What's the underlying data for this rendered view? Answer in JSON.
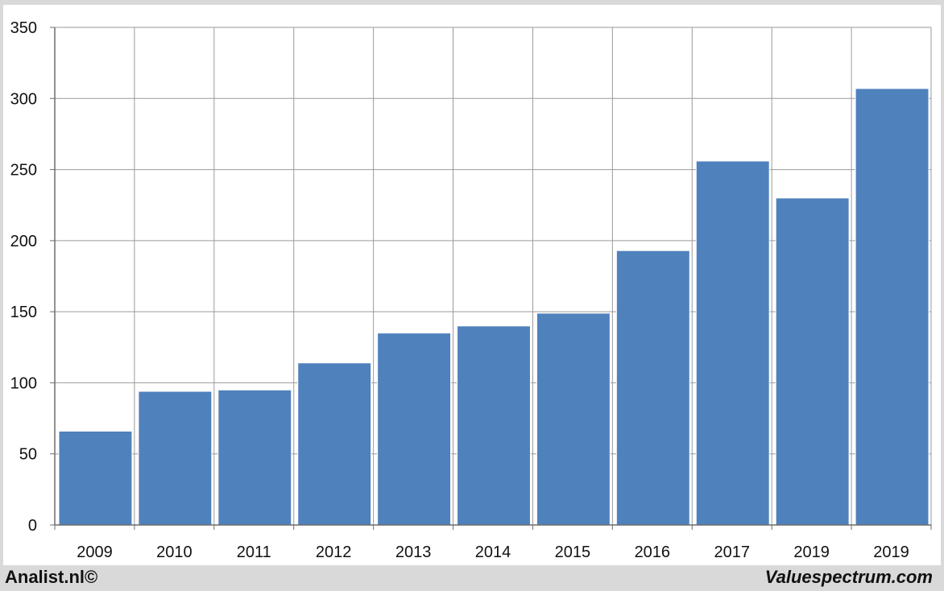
{
  "chart_data": {
    "type": "bar",
    "categories": [
      "2009",
      "2010",
      "2011",
      "2012",
      "2013",
      "2014",
      "2015",
      "2016",
      "2017",
      "2019",
      "2019"
    ],
    "values": [
      66,
      94,
      95,
      114,
      135,
      140,
      149,
      193,
      256,
      230,
      307
    ],
    "ylim": [
      0,
      350
    ],
    "yticks": [
      0,
      50,
      100,
      150,
      200,
      250,
      300,
      350
    ],
    "title": "",
    "xlabel": "",
    "ylabel": "",
    "grid": true,
    "bar_color": "#4f81bd"
  },
  "credits": {
    "left": "Analist.nl©",
    "right": "Valuespectrum.com"
  }
}
